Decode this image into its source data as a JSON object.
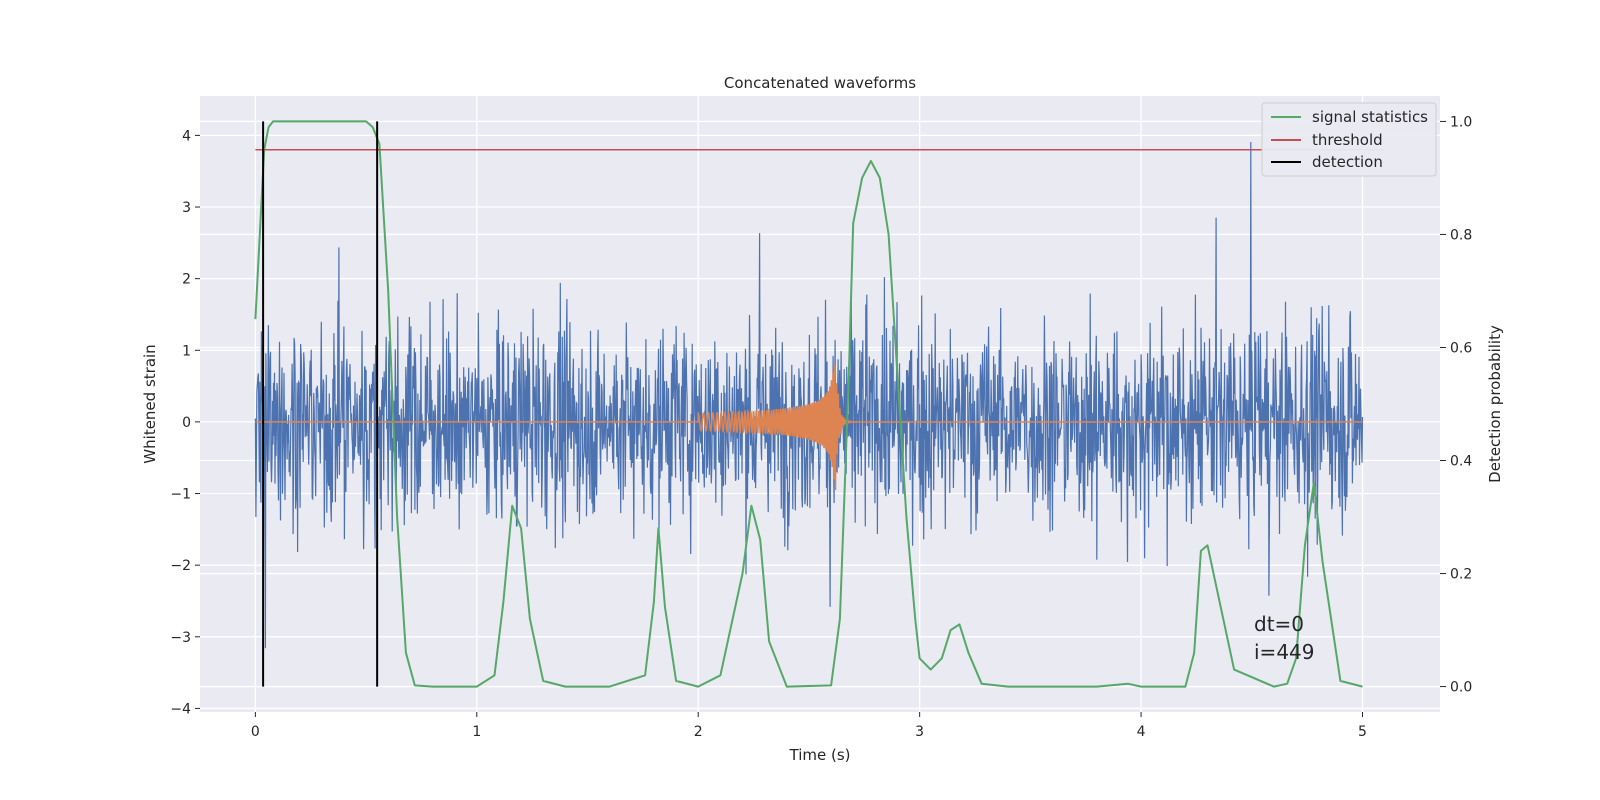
{
  "chart_data": {
    "type": "line",
    "title": "Concatenated waveforms",
    "xlabel": "Time (s)",
    "ylabel": "Whitened strain",
    "ylabel_right": "Detection probability",
    "xlim": [
      -0.25,
      5.35
    ],
    "ylim": [
      -4.05,
      4.55
    ],
    "ylim_right": [
      -0.045,
      1.045
    ],
    "x_ticks": [
      0,
      1,
      2,
      3,
      4,
      5
    ],
    "y_ticks": [
      -4,
      -3,
      -2,
      -1,
      0,
      1,
      2,
      3,
      4
    ],
    "y_ticks_right": [
      0.0,
      0.2,
      0.4,
      0.6,
      0.8,
      1.0
    ],
    "x_tick_labels": [
      "0",
      "1",
      "2",
      "3",
      "4",
      "5"
    ],
    "y_tick_labels": [
      "−4",
      "−3",
      "−2",
      "−1",
      "0",
      "1",
      "2",
      "3",
      "4"
    ],
    "y_tick_labels_right": [
      "0.0",
      "0.2",
      "0.4",
      "0.6",
      "0.8",
      "1.0"
    ],
    "grid": true,
    "legend_position": "top-right",
    "annotation_lines": [
      "dt=0",
      "i=449"
    ],
    "colors": {
      "background": "#eaeaf2",
      "strain": "#4c72b0",
      "template": "#dd8452",
      "signal_statistics": "#55a868",
      "threshold": "#c44e52",
      "detection": "#000000"
    },
    "series": [
      {
        "name": "signal statistics",
        "axis": "right",
        "x": [
          0.0,
          0.02,
          0.04,
          0.06,
          0.08,
          0.12,
          0.2,
          0.4,
          0.5,
          0.53,
          0.56,
          0.6,
          0.64,
          0.68,
          0.72,
          0.8,
          1.0,
          1.08,
          1.12,
          1.16,
          1.2,
          1.24,
          1.3,
          1.4,
          1.6,
          1.76,
          1.8,
          1.82,
          1.85,
          1.9,
          2.0,
          2.1,
          2.2,
          2.24,
          2.28,
          2.32,
          2.4,
          2.6,
          2.64,
          2.68,
          2.7,
          2.74,
          2.78,
          2.82,
          2.86,
          2.9,
          2.94,
          2.98,
          3.0,
          3.05,
          3.1,
          3.14,
          3.18,
          3.22,
          3.28,
          3.4,
          3.8,
          3.94,
          4.0,
          4.2,
          4.24,
          4.27,
          4.3,
          4.36,
          4.42,
          4.6,
          4.66,
          4.7,
          4.74,
          4.78,
          4.82,
          4.9,
          5.0
        ],
        "y": [
          0.65,
          0.8,
          0.95,
          0.99,
          1.0,
          1.0,
          1.0,
          1.0,
          1.0,
          0.99,
          0.96,
          0.7,
          0.3,
          0.06,
          0.002,
          0.0,
          0.0,
          0.02,
          0.15,
          0.32,
          0.28,
          0.12,
          0.01,
          0.0,
          0.0,
          0.02,
          0.15,
          0.28,
          0.14,
          0.01,
          0.0,
          0.02,
          0.2,
          0.32,
          0.26,
          0.08,
          0.0,
          0.002,
          0.12,
          0.55,
          0.82,
          0.9,
          0.93,
          0.9,
          0.8,
          0.55,
          0.3,
          0.12,
          0.05,
          0.03,
          0.05,
          0.1,
          0.11,
          0.06,
          0.005,
          0.0,
          0.0,
          0.005,
          0.0,
          0.0,
          0.06,
          0.24,
          0.25,
          0.14,
          0.03,
          0.0,
          0.005,
          0.05,
          0.25,
          0.36,
          0.22,
          0.01,
          0.0
        ]
      },
      {
        "name": "threshold",
        "axis": "right",
        "x": [
          0.0,
          5.1
        ],
        "y": [
          0.95,
          0.95
        ]
      },
      {
        "name": "detection",
        "axis": "right",
        "lines": [
          {
            "x": 0.035,
            "y": [
              0.0,
              1.0
            ]
          },
          {
            "x": 0.55,
            "y": [
              0.0,
              1.0
            ]
          }
        ]
      }
    ]
  }
}
